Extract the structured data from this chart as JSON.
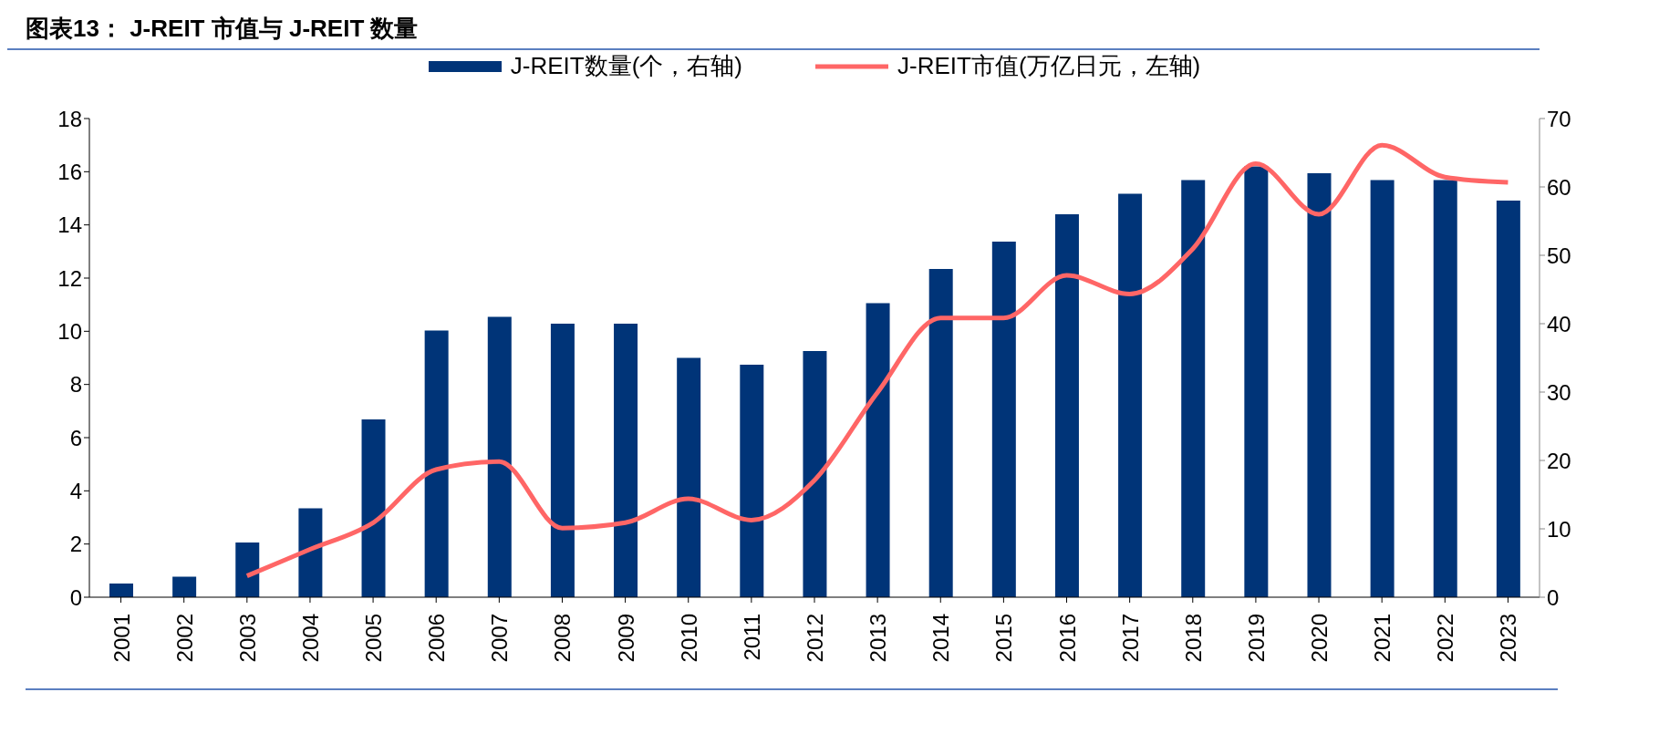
{
  "chart_data": {
    "type": "bar",
    "title": "图表13： J-REIT 市值与 J-REIT 数量",
    "categories": [
      "2001",
      "2002",
      "2003",
      "2004",
      "2005",
      "2006",
      "2007",
      "2008",
      "2009",
      "2010",
      "2011",
      "2012",
      "2013",
      "2014",
      "2015",
      "2016",
      "2017",
      "2018",
      "2019",
      "2020",
      "2021",
      "2022",
      "2023"
    ],
    "series": [
      {
        "name": "J-REIT数量(个，右轴)",
        "axis": "y2",
        "color": "#003478",
        "values": [
          2,
          3,
          8,
          13,
          26,
          39,
          41,
          40,
          40,
          35,
          34,
          36,
          43,
          48,
          52,
          56,
          59,
          61,
          63,
          62,
          61,
          61,
          58
        ]
      },
      {
        "name": "J-REIT市值(万亿日元，左轴)",
        "type": "line",
        "color": "#ff6666",
        "values": [
          null,
          null,
          0.8,
          1.8,
          2.8,
          4.8,
          5.1,
          2.6,
          2.8,
          3.7,
          2.9,
          4.4,
          7.7,
          10.5,
          10.5,
          12.1,
          11.4,
          13.1,
          16.3,
          14.4,
          17.0,
          15.8,
          15.6
        ]
      }
    ],
    "ylim": [
      0,
      18
    ],
    "yticks": [
      0,
      2,
      4,
      6,
      8,
      10,
      12,
      14,
      16,
      18
    ],
    "y2lim": [
      0,
      70
    ],
    "y2ticks": [
      0,
      10,
      20,
      30,
      40,
      50,
      60,
      70
    ],
    "grid": false,
    "legend": "top",
    "marker": "none"
  }
}
